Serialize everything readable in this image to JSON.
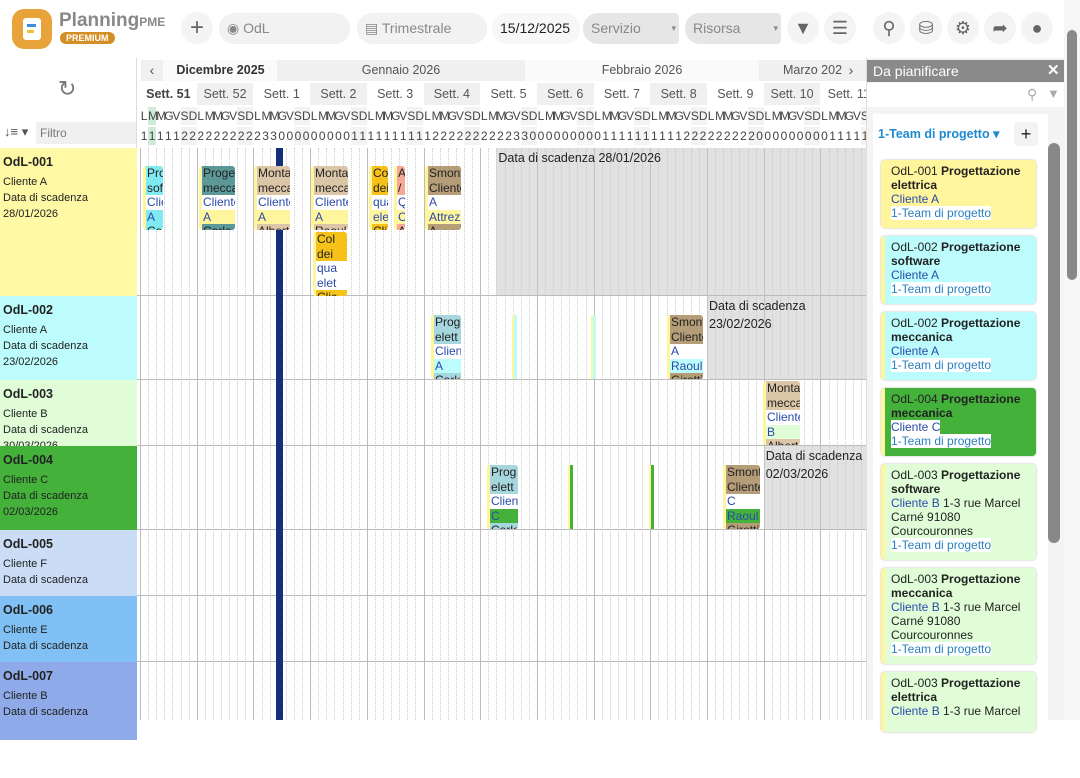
{
  "app": {
    "name": "Planning",
    "name_suffix": "PME",
    "badge": "PREMIUM"
  },
  "toolbar": {
    "add": "+",
    "view_value": "OdL",
    "period_value": "Trimestrale",
    "date_value": "15/12/2025",
    "service_placeholder": "Servizio",
    "resource_placeholder": "Risorsa"
  },
  "timeline": {
    "months": [
      "Dicembre 2025",
      "Gennaio 2026",
      "Febbraio 2026",
      "Marzo 202"
    ],
    "weeks": [
      "Sett. 51",
      "Sett. 52",
      "Sett. 1",
      "Sett. 2",
      "Sett. 3",
      "Sett. 4",
      "Sett. 5",
      "Sett. 6",
      "Sett. 7",
      "Sett. 8",
      "Sett. 9",
      "Sett. 10",
      "Sett. 11"
    ],
    "day_letters": [
      "L",
      "M",
      "M",
      "G",
      "V",
      "S",
      "D"
    ],
    "filter_placeholder": "Filtro"
  },
  "rows": [
    {
      "id": "OdL-001",
      "client": "Cliente A",
      "due_label": "Data di scadenza",
      "due": "28/01/2026",
      "color": "#fff9a6",
      "deadline_text": "Data di scadenza 28/01/2026"
    },
    {
      "id": "OdL-002",
      "client": "Cliente A",
      "due_label": "Data di scadenza",
      "due": "23/02/2026",
      "color": "#bdfcfc",
      "deadline_text": "Data di scadenza",
      "deadline_date": "23/02/2026"
    },
    {
      "id": "OdL-003",
      "client": "Cliente B",
      "due_label": "Data di scadenza",
      "due": "30/03/2026",
      "color": "#e0fdd8"
    },
    {
      "id": "OdL-004",
      "client": "Cliente C",
      "due_label": "Data di scadenza",
      "due": "02/03/2026",
      "color": "#43b13a",
      "deadline_text": "Data di scadenza",
      "deadline_date": "02/03/2026"
    },
    {
      "id": "OdL-005",
      "client": "Cliente F",
      "due_label": "Data di scadenza",
      "color": "#cadcf6"
    },
    {
      "id": "OdL-006",
      "client": "Cliente E",
      "due_label": "Data di scadenza",
      "color": "#80c0f4"
    },
    {
      "id": "OdL-007",
      "client": "Cliente B",
      "due_label": "Data di scadenza",
      "color": "#8eaae8"
    }
  ],
  "tasks": [
    {
      "lines": [
        "Pro",
        "sof",
        "Clie",
        "A",
        "Car"
      ],
      "head": "#80eaf2"
    },
    {
      "lines": [
        "Proget",
        "mecca",
        "Cliente",
        "A",
        "Carlo"
      ],
      "head": "#5c9898"
    },
    {
      "lines": [
        "Monta",
        "mecca",
        "Cliente",
        "A",
        "Albert"
      ],
      "head": "#dcc6a8"
    },
    {
      "lines": [
        "Monta",
        "mecca",
        "Cliente",
        "A",
        "Raoul"
      ],
      "head": "#dcc6a8"
    },
    {
      "lines": [
        "Col",
        "dei",
        "qua",
        "elet",
        "Clic"
      ],
      "head": "#f6c21a"
    },
    {
      "lines": [
        "A",
        "/",
        "Q",
        "Cl",
        "A"
      ],
      "head": "#f4a898"
    },
    {
      "lines": [
        "Smont",
        "Cliente",
        "A",
        "Attrez",
        "A"
      ],
      "head": "#b59d78"
    },
    {
      "lines": [
        "Col",
        "dei",
        "qua",
        "elet",
        "Clic"
      ],
      "head": "#f6c21a"
    },
    {
      "lines": [
        "Prog",
        "elett",
        "Clien",
        "A",
        "Carlo"
      ],
      "head": "#a6d6de"
    },
    {
      "lines": [
        "Smont",
        "Cliente",
        "A",
        "Raoul",
        "Girotti"
      ],
      "head": "#b59d78"
    },
    {
      "lines": [
        "Monta",
        "mecca",
        "Cliente",
        "B",
        "Albert"
      ],
      "head": "#dcc6a8"
    },
    {
      "lines": [
        "Prog",
        "elett",
        "Clien",
        "C",
        "Carlo"
      ],
      "head": "#a6d6de"
    },
    {
      "lines": [
        "Smont",
        "Cliente",
        "C",
        "Raoul",
        "Girotti"
      ],
      "head": "#b59d78"
    }
  ],
  "panel": {
    "title": "Da pianificare",
    "group": "1-Team di progetto",
    "cards": [
      {
        "id": "OdL-001",
        "title": "Progettazione elettrica",
        "client": "Cliente A",
        "addr": "",
        "team": "1-Team di progetto",
        "color": "#fff59d"
      },
      {
        "id": "OdL-002",
        "title": "Progettazione software",
        "client": "Cliente A",
        "addr": "",
        "team": "1-Team di progetto",
        "color": "#bdfcfc"
      },
      {
        "id": "OdL-002",
        "title": "Progettazione meccanica",
        "client": "Cliente A",
        "addr": "",
        "team": "1-Team di progetto",
        "color": "#bdfcfc"
      },
      {
        "id": "OdL-004",
        "title": "Progettazione meccanica",
        "client": "Cliente C",
        "addr": "",
        "team": "1-Team di progetto",
        "color": "#43b13a"
      },
      {
        "id": "OdL-003",
        "title": "Progettazione software",
        "client": "Cliente B",
        "addr": "1-3 rue Marcel Carné 91080 Courcouronnes",
        "team": "1-Team di progetto",
        "color": "#e0fdd8"
      },
      {
        "id": "OdL-003",
        "title": "Progettazione meccanica",
        "client": "Cliente B",
        "addr": "1-3 rue Marcel Carné 91080 Courcouronnes",
        "team": "1-Team di progetto",
        "color": "#e0fdd8"
      },
      {
        "id": "OdL-003",
        "title": "Progettazione elettrica",
        "client": "Cliente B",
        "addr": "1-3 rue Marcel",
        "team": "",
        "color": "#e0fdd8"
      }
    ]
  }
}
